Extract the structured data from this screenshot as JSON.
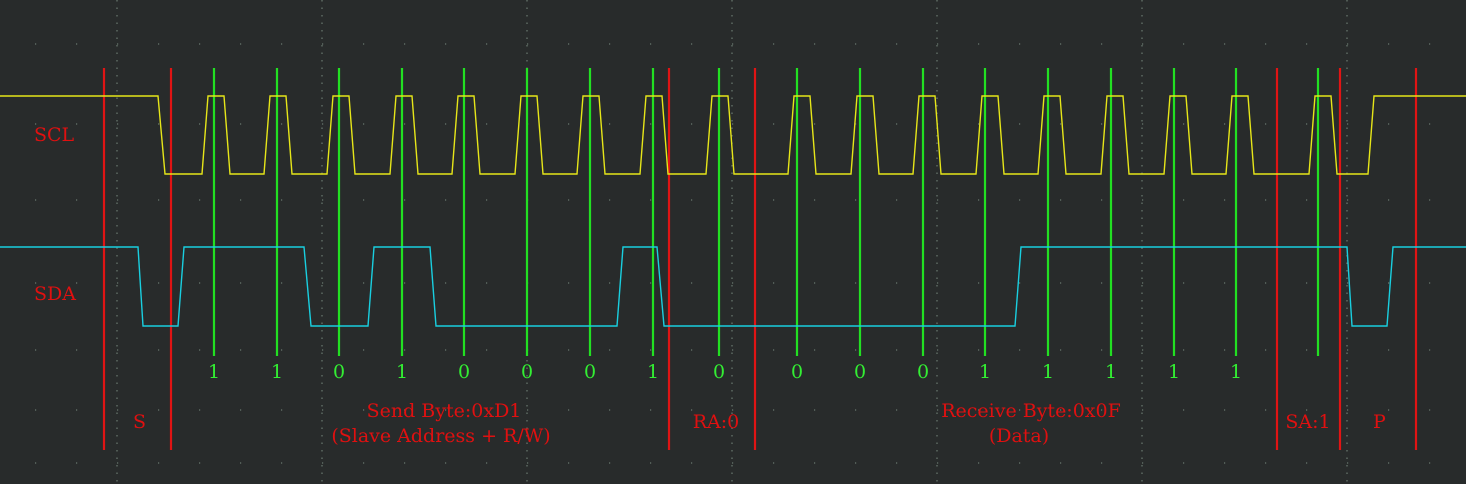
{
  "signals": {
    "scl": "SCL",
    "sda": "SDA"
  },
  "send_bits": [
    "1",
    "1",
    "0",
    "1",
    "0",
    "0",
    "0",
    "1"
  ],
  "receive_bits": [
    "0",
    "0",
    "0",
    "0",
    "1",
    "1",
    "1",
    "1"
  ],
  "ack_bit": "1",
  "segments": {
    "start": "S",
    "send_title": "Send Byte:0xD1",
    "send_sub": "(Slave Address + R/W)",
    "receiver_ack": "RA:0",
    "receive_title": "Receive Byte:0x0F",
    "receive_sub": "(Data)",
    "sender_ack": "SA:1",
    "stop": "P"
  },
  "colors": {
    "background": "#282b2b",
    "scl_trace": "#e6e619",
    "sda_trace": "#19cfe0",
    "sample_marker": "#22e022",
    "boundary_marker": "#e01414",
    "grid": "#6a7a70"
  }
}
